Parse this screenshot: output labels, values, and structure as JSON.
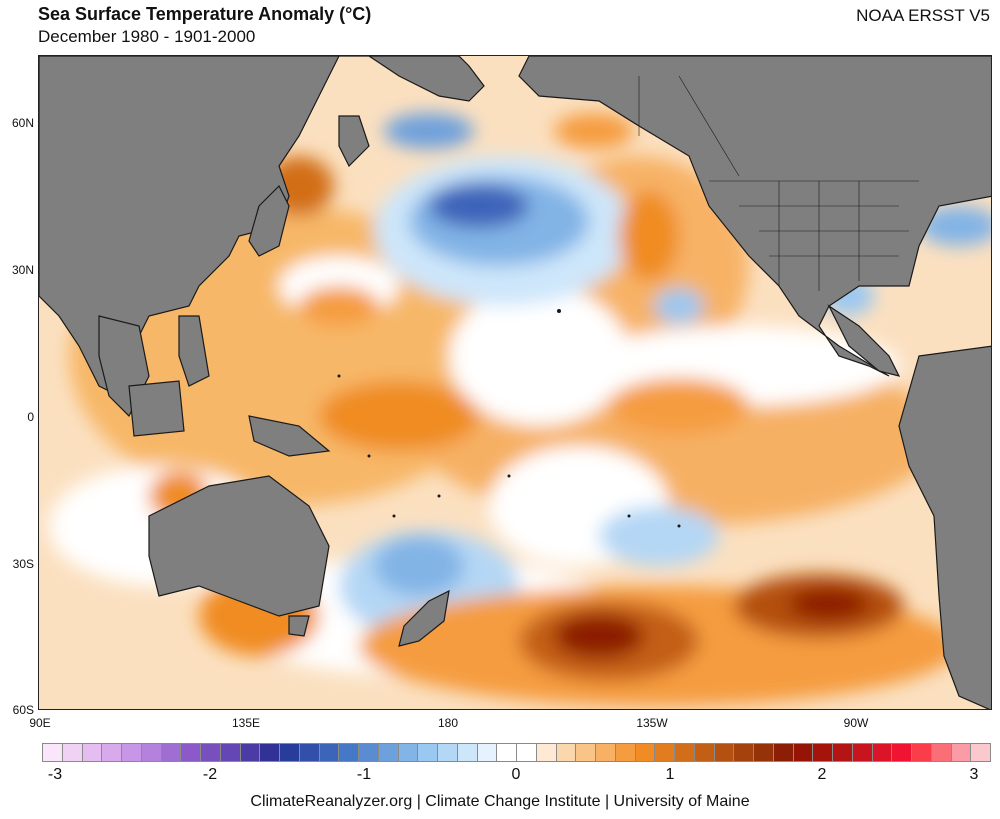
{
  "header": {
    "title": "Sea Surface Temperature Anomaly (°C)",
    "subtitle": "December 1980 - 1901-2000",
    "dataset": "NOAA ERSST V5"
  },
  "map": {
    "lat_labels": [
      "60N",
      "30N",
      "0",
      "30S",
      "60S"
    ],
    "lon_labels": [
      "90E",
      "135E",
      "180",
      "135W",
      "90W"
    ],
    "land_color": "#7f7f7f",
    "ocean_neutral_color": "#ffffff"
  },
  "colorbar": {
    "labels": [
      "-3",
      "-2",
      "-1",
      "0",
      "1",
      "2",
      "3"
    ],
    "colors": [
      "#fae6fa",
      "#f0d2f5",
      "#e6bdf0",
      "#d9aaeb",
      "#c896e6",
      "#b482dc",
      "#a06ed2",
      "#8c5ac8",
      "#7850be",
      "#6446b4",
      "#4b3ca5",
      "#323296",
      "#283c9b",
      "#3250aa",
      "#3c64b9",
      "#4678c8",
      "#5a8cd2",
      "#6ea0dc",
      "#82b4e6",
      "#9bc8f0",
      "#b4d7f5",
      "#cde6fa",
      "#e6f2fd",
      "#ffffff",
      "#ffffff",
      "#fde9d4",
      "#fbd7ad",
      "#f9c487",
      "#f7b064",
      "#f59c41",
      "#f08c23",
      "#e17d1e",
      "#d26e19",
      "#c35f14",
      "#b45010",
      "#a5410c",
      "#963208",
      "#8c1e05",
      "#961405",
      "#a5140a",
      "#b41414",
      "#c8141e",
      "#dc1428",
      "#f01432",
      "#fa3c4b",
      "#fa6e78",
      "#fa9ba5",
      "#fac8cd"
    ]
  },
  "footer": {
    "credit": "ClimateReanalyzer.org | Climate Change Institute | University of Maine"
  }
}
